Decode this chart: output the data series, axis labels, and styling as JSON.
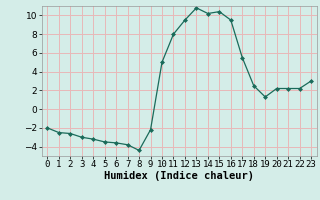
{
  "x": [
    0,
    1,
    2,
    3,
    4,
    5,
    6,
    7,
    8,
    9,
    10,
    11,
    12,
    13,
    14,
    15,
    16,
    17,
    18,
    19,
    20,
    21,
    22,
    23
  ],
  "y": [
    -2,
    -2.5,
    -2.6,
    -3.0,
    -3.2,
    -3.5,
    -3.6,
    -3.8,
    -4.4,
    -2.2,
    5.0,
    8.0,
    9.5,
    10.8,
    10.2,
    10.4,
    9.5,
    5.5,
    2.5,
    1.3,
    2.2,
    2.2,
    2.2,
    3.0
  ],
  "line_color": "#1a6b5a",
  "marker_color": "#1a6b5a",
  "bg_color": "#d4ede8",
  "grid_color": "#e8b8b8",
  "xlabel": "Humidex (Indice chaleur)",
  "ylim": [
    -5,
    11
  ],
  "xlim": [
    -0.5,
    23.5
  ],
  "yticks": [
    -4,
    -2,
    0,
    2,
    4,
    6,
    8,
    10
  ],
  "xticks": [
    0,
    1,
    2,
    3,
    4,
    5,
    6,
    7,
    8,
    9,
    10,
    11,
    12,
    13,
    14,
    15,
    16,
    17,
    18,
    19,
    20,
    21,
    22,
    23
  ],
  "xtick_labels": [
    "0",
    "1",
    "2",
    "3",
    "4",
    "5",
    "6",
    "7",
    "8",
    "9",
    "10",
    "11",
    "12",
    "13",
    "14",
    "15",
    "16",
    "17",
    "18",
    "19",
    "20",
    "21",
    "22",
    "23"
  ],
  "font_size": 6.5,
  "xlabel_fontsize": 7.5,
  "xlabel_fontweight": "bold"
}
